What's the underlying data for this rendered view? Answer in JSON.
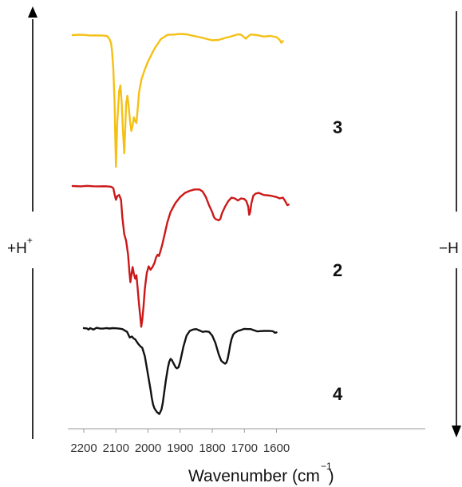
{
  "chart_data": {
    "type": "line",
    "xlabel_main": "Wavenumber (cm",
    "xlabel_sup": "−1",
    "xlabel_close": ")",
    "xlim": [
      2240,
      1560
    ],
    "xticks": [
      2200,
      2100,
      2000,
      1900,
      1800,
      1700,
      1600
    ],
    "grid": false,
    "left_arrow": {
      "label": "+H",
      "sup": "+"
    },
    "right_arrow": {
      "label": "−H"
    },
    "series": [
      {
        "name": "3",
        "color": "#f5c015",
        "x": [
          2235,
          2215,
          2200,
          2180,
          2160,
          2140,
          2130,
          2125,
          2120,
          2115,
          2112,
          2108,
          2104,
          2102,
          2100,
          2096,
          2090,
          2086,
          2082,
          2078,
          2074,
          2071,
          2068,
          2064,
          2060,
          2056,
          2052,
          2048,
          2044,
          2040,
          2036,
          2032,
          2028,
          2020,
          2010,
          2000,
          1990,
          1980,
          1960,
          1940,
          1920,
          1900,
          1880,
          1860,
          1840,
          1820,
          1800,
          1780,
          1760,
          1740,
          1720,
          1710,
          1700,
          1695,
          1690,
          1680,
          1660,
          1640,
          1620,
          1600,
          1590,
          1585,
          1580
        ],
        "y": [
          0.0,
          0.5,
          0.3,
          -0.4,
          -0.3,
          -0.6,
          -1.0,
          -2.0,
          -5.0,
          -10.0,
          -20.0,
          -42.0,
          -85.0,
          -125.0,
          -165.0,
          -110.0,
          -70.0,
          -63.0,
          -85.0,
          -120.0,
          -148.0,
          -118.0,
          -85.0,
          -76.0,
          -90.0,
          -108.0,
          -120.0,
          -113.0,
          -103.0,
          -108.0,
          -110.0,
          -92.0,
          -72.0,
          -55.0,
          -43.0,
          -33.0,
          -25.0,
          -17.0,
          -5.0,
          0.3,
          0.7,
          1.5,
          1.0,
          -0.8,
          -2.5,
          -4.5,
          -6.5,
          -6.0,
          -3.5,
          -1.5,
          1.0,
          0.5,
          -3.0,
          -4.5,
          -2.0,
          0.8,
          0.0,
          -1.8,
          -1.0,
          -2.5,
          -6.0,
          -9.5,
          -7.5
        ]
      },
      {
        "name": "2",
        "color": "#cc1818",
        "x": [
          2235,
          2210,
          2190,
          2170,
          2150,
          2130,
          2115,
          2108,
          2104,
          2100,
          2096,
          2090,
          2084,
          2080,
          2074,
          2068,
          2062,
          2058,
          2055,
          2052,
          2048,
          2044,
          2040,
          2036,
          2032,
          2028,
          2024,
          2021,
          2018,
          2014,
          2010,
          2004,
          1998,
          1992,
          1986,
          1980,
          1975,
          1970,
          1966,
          1962,
          1956,
          1948,
          1940,
          1930,
          1915,
          1900,
          1885,
          1870,
          1855,
          1840,
          1830,
          1820,
          1810,
          1800,
          1795,
          1790,
          1780,
          1775,
          1770,
          1760,
          1750,
          1740,
          1730,
          1720,
          1710,
          1700,
          1694,
          1688,
          1685,
          1682,
          1678,
          1672,
          1665,
          1655,
          1640,
          1620,
          1600,
          1590,
          1580,
          1573,
          1566,
          1562
        ],
        "y": [
          0.0,
          -0.5,
          0.2,
          -0.3,
          -0.5,
          -0.3,
          -1.0,
          -3.0,
          -12.0,
          -20.0,
          -15.0,
          -13.0,
          -20.0,
          -45.0,
          -70.0,
          -80.0,
          -100.0,
          -125.0,
          -140.0,
          -130.0,
          -118.0,
          -128.0,
          -135.0,
          -130.0,
          -150.0,
          -172.0,
          -190.0,
          -205.0,
          -195.0,
          -175.0,
          -150.0,
          -127.0,
          -117.0,
          -122.0,
          -118.0,
          -112.0,
          -104.0,
          -100.0,
          -102.0,
          -96.0,
          -86.0,
          -70.0,
          -53.0,
          -38.0,
          -25.0,
          -16.0,
          -10.0,
          -7.0,
          -5.0,
          -5.0,
          -8.0,
          -16.0,
          -28.0,
          -38.0,
          -45.0,
          -48.0,
          -50.0,
          -48.0,
          -40.0,
          -30.0,
          -22.0,
          -17.0,
          -18.0,
          -21.0,
          -18.0,
          -19.0,
          -22.0,
          -30.0,
          -42.0,
          -38.0,
          -25.0,
          -14.0,
          -11.0,
          -10.0,
          -13.0,
          -14.0,
          -16.0,
          -18.0,
          -17.0,
          -22.0,
          -28.0,
          -27.0
        ]
      },
      {
        "name": "4",
        "color": "#111111",
        "x": [
          2200,
          2190,
          2185,
          2180,
          2170,
          2160,
          2150,
          2140,
          2130,
          2120,
          2110,
          2100,
          2090,
          2080,
          2065,
          2057,
          2050,
          2045,
          2040,
          2030,
          2025,
          2022,
          2018,
          2010,
          2004,
          1998,
          1992,
          1988,
          1984,
          1980,
          1976,
          1972,
          1968,
          1965,
          1962,
          1958,
          1954,
          1950,
          1944,
          1938,
          1934,
          1930,
          1926,
          1920,
          1914,
          1910,
          1905,
          1900,
          1890,
          1880,
          1870,
          1860,
          1850,
          1840,
          1830,
          1820,
          1810,
          1800,
          1790,
          1780,
          1772,
          1765,
          1760,
          1756,
          1752,
          1748,
          1744,
          1740,
          1735,
          1730,
          1720,
          1710,
          1700,
          1690,
          1680,
          1660,
          1640,
          1620,
          1610,
          1605,
          1600
        ],
        "y": [
          0.0,
          -0.3,
          -1.5,
          0.0,
          -1.5,
          0.3,
          -0.3,
          -0.5,
          0.0,
          -0.4,
          0.0,
          -0.2,
          -0.5,
          -1.0,
          -4.0,
          -10.0,
          -9.0,
          -11.0,
          -12.0,
          -17.0,
          -19.0,
          -20.0,
          -21.0,
          -30.0,
          -42.0,
          -54.0,
          -66.0,
          -75.0,
          -82.0,
          -86.0,
          -88.0,
          -90.0,
          -91.0,
          -92.0,
          -90.0,
          -87.0,
          -80.0,
          -70.0,
          -55.0,
          -42.0,
          -36.0,
          -33.0,
          -34.0,
          -38.0,
          -42.0,
          -43.0,
          -42.0,
          -36.0,
          -20.0,
          -8.0,
          -3.0,
          -1.5,
          -1.0,
          -2.5,
          -4.0,
          -3.5,
          -4.0,
          -8.0,
          -16.0,
          -28.0,
          -35.0,
          -37.0,
          -38.0,
          -37.0,
          -33.0,
          -26.0,
          -18.0,
          -12.0,
          -7.0,
          -5.0,
          -3.0,
          -2.0,
          -0.8,
          -1.0,
          -1.0,
          -3.5,
          -3.0,
          -3.0,
          -3.5,
          -5.0,
          -4.5
        ]
      }
    ]
  }
}
